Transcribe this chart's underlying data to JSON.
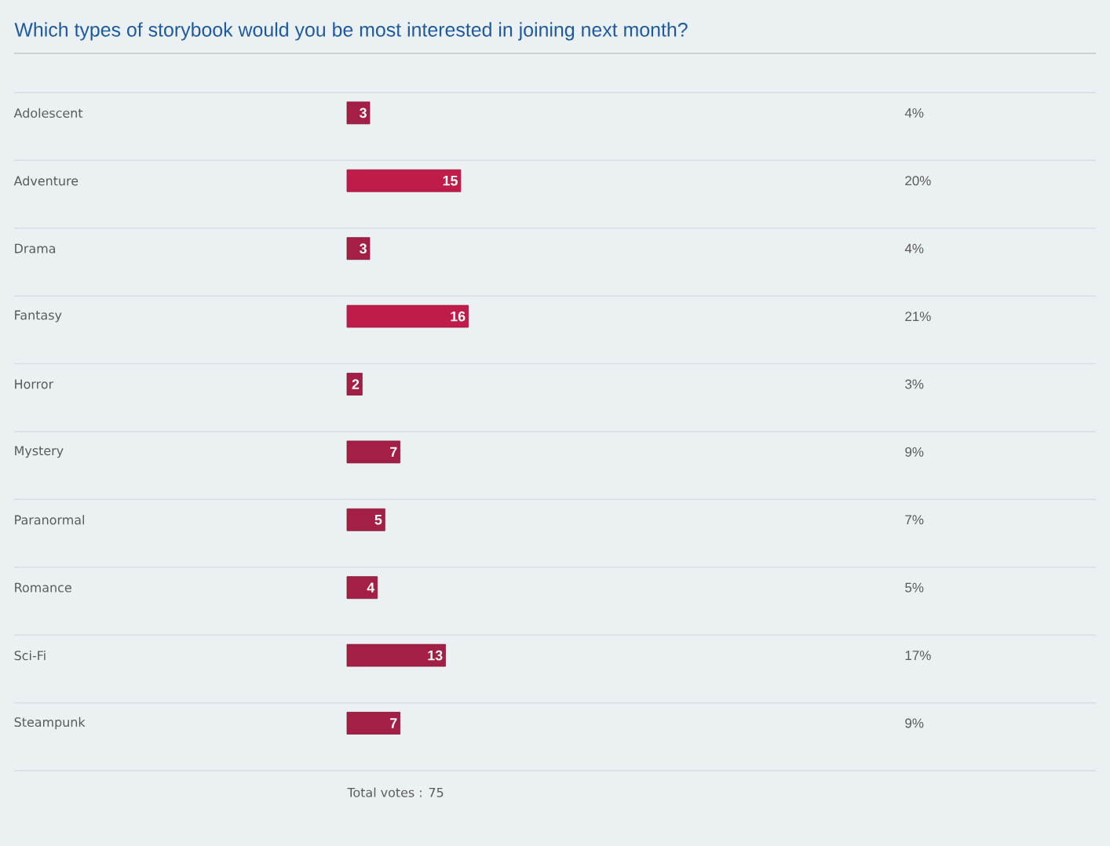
{
  "chart_data": {
    "type": "bar",
    "orientation": "horizontal",
    "title": "Which types of storybook would you be most interested in joining next month?",
    "categories": [
      "Adolescent",
      "Adventure",
      "Drama",
      "Fantasy",
      "Horror",
      "Mystery",
      "Paranormal",
      "Romance",
      "Sci-Fi",
      "Steampunk"
    ],
    "values": [
      3,
      15,
      3,
      16,
      2,
      7,
      5,
      4,
      13,
      7
    ],
    "colors": [
      "#a31f45",
      "#c01c4a",
      "#a31f45",
      "#c01c4a",
      "#a31f45",
      "#a31f45",
      "#a31f45",
      "#a31f45",
      "#a31f45",
      "#a31f45"
    ],
    "data_labels": true,
    "annotations": [
      "4%",
      "20%",
      "4%",
      "21%",
      "3%",
      "9%",
      "7%",
      "5%",
      "17%",
      "9%",
      "Total votes : 75"
    ]
  }
}
